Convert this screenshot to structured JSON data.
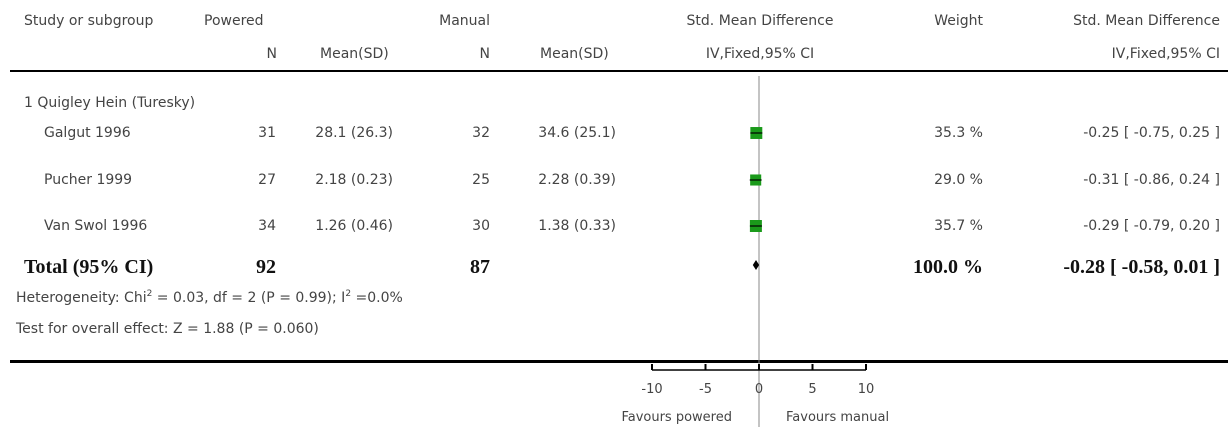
{
  "header": {
    "study": "Study or subgroup",
    "group1": "Powered",
    "n1": "N",
    "mean1": "Mean(SD)",
    "group2": "Manual",
    "n2": "N",
    "mean2": "Mean(SD)",
    "smd": "Std. Mean Difference",
    "smd_sub": "IV,Fixed,95% CI",
    "weight": "Weight",
    "smd2": "Std. Mean Difference",
    "smd2_sub": "IV,Fixed,95% CI"
  },
  "subgroup": "1 Quigley Hein (Turesky)",
  "studies": [
    {
      "name": "Galgut 1996",
      "n1": "31",
      "mean1": "28.1 (26.3)",
      "n2": "32",
      "mean2": "34.6 (25.1)",
      "weight": "35.3 %",
      "ci": "-0.25 [ -0.75, 0.25 ]"
    },
    {
      "name": "Pucher 1999",
      "n1": "27",
      "mean1": "2.18 (0.23)",
      "n2": "25",
      "mean2": "2.28 (0.39)",
      "weight": "29.0 %",
      "ci": "-0.31 [ -0.86, 0.24 ]"
    },
    {
      "name": "Van Swol 1996",
      "n1": "34",
      "mean1": "1.26 (0.46)",
      "n2": "30",
      "mean2": "1.38 (0.33)",
      "weight": "35.7 %",
      "ci": "-0.29 [ -0.79, 0.20 ]"
    }
  ],
  "total": {
    "label": "Total (95% CI)",
    "n1": "92",
    "n2": "87",
    "weight": "100.0 %",
    "ci": "-0.28 [ -0.58, 0.01 ]"
  },
  "heterogeneity": {
    "prefix": "Heterogeneity: Chi",
    "mid": " = 0.03, df = 2 (P = 0.99); I",
    "suffix": " =0.0%",
    "sup": "2"
  },
  "overall_effect": "Test for overall effect: Z = 1.88 (P = 0.060)",
  "favours_left": "Favours powered",
  "favours_right": "Favours manual",
  "colors": {
    "box": "#1a9a1a",
    "line": "#000000",
    "axis": "#888888"
  },
  "chart_data": {
    "type": "forest",
    "xlim": [
      -10,
      10
    ],
    "ticks": [
      -10,
      -5,
      0,
      5,
      10
    ],
    "tick_labels": [
      "-10",
      "-5",
      "0",
      "5",
      "10"
    ],
    "studies": [
      {
        "name": "Galgut 1996",
        "smd": -0.25,
        "lo": -0.75,
        "hi": 0.25,
        "weight": 35.3
      },
      {
        "name": "Pucher 1999",
        "smd": -0.31,
        "lo": -0.86,
        "hi": 0.24,
        "weight": 29.0
      },
      {
        "name": "Van Swol 1996",
        "smd": -0.29,
        "lo": -0.79,
        "hi": 0.2,
        "weight": 35.7
      }
    ],
    "pooled": {
      "smd": -0.28,
      "lo": -0.58,
      "hi": 0.01
    }
  }
}
